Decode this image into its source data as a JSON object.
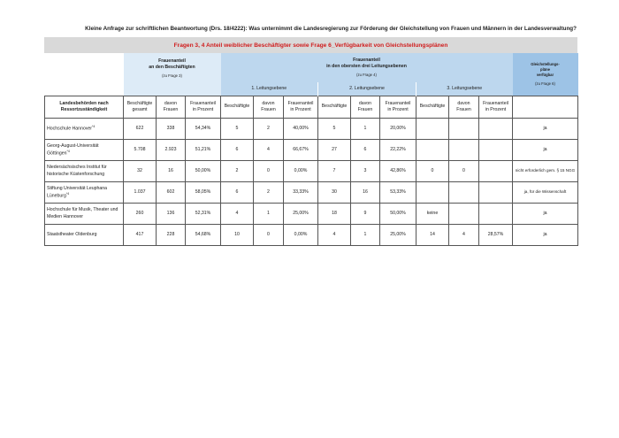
{
  "title": "Kleine Anfrage zur schriftlichen Beantwortung (Drs. 18/4222): Was unternimmt die Landesregierung zur Förderung der Gleichstellung von Frauen und Männern in der Landesverwaltung?",
  "banner": "Fragen 3, 4 Anteil weiblicher Beschäftigter sowie Frage 6_Verfügbarkeit von Gleichstellungsplänen",
  "groups": {
    "beschaeftigte": {
      "line1": "Frauenanteil",
      "line2": "an den Beschäftigten",
      "ref": "(zu Frage 3)"
    },
    "leitung": {
      "line1": "Frauenanteil",
      "line2": "in den obersten drei Leitungsebenen",
      "ref": "(zu Frage 4)",
      "levels": [
        "1. Leitungsebene",
        "2. Leitungsebene",
        "3. Leitungsebene"
      ]
    },
    "plaene": {
      "line1": "Gleichstellungs-",
      "line2": "pläne",
      "line3": "verfügbar",
      "ref": "(zu Frage 6)"
    }
  },
  "columns": {
    "name_line1": "Landesbehörden nach",
    "name_line2": "Ressortzuständigkeit",
    "gesamt": [
      "Beschäftigte",
      "gesamt"
    ],
    "frauen": [
      "davon",
      "Frauen"
    ],
    "prozent": [
      "Frauenanteil",
      "in Prozent"
    ],
    "beschaeftigte": "Beschäftigte"
  },
  "rows": [
    {
      "name": "Hochschule Hannover",
      "sup": "*4",
      "cells": [
        "622",
        "338",
        "54,34%",
        "5",
        "2",
        "40,00%",
        "5",
        "1",
        "20,00%",
        "",
        "",
        "",
        "ja"
      ]
    },
    {
      "name": "Georg-August-Universität Göttingen",
      "sup": "*4",
      "cells": [
        "5.708",
        "2.923",
        "51,21%",
        "6",
        "4",
        "66,67%",
        "27",
        "6",
        "22,22%",
        "",
        "",
        "",
        "ja"
      ]
    },
    {
      "name": "Niedersächsisches Institut für historische Küstenforschung",
      "sup": "",
      "cells": [
        "32",
        "16",
        "50,00%",
        "2",
        "0",
        "0,00%",
        "7",
        "3",
        "42,86%",
        "0",
        "0",
        "",
        "nicht erforderlich gem. § 15 NGG"
      ]
    },
    {
      "name": "Stiftung Universität Leuphana Lüneburg",
      "sup": "*4",
      "cells": [
        "1.037",
        "602",
        "58,05%",
        "6",
        "2",
        "33,33%",
        "30",
        "16",
        "53,33%",
        "",
        "",
        "",
        "ja, für die Wissenschaft"
      ]
    },
    {
      "name": "Hochschule für Musik, Theater und Medien Hannover",
      "sup": "",
      "cells": [
        "260",
        "136",
        "52,31%",
        "4",
        "1",
        "25,00%",
        "18",
        "9",
        "50,00%",
        "keine",
        "",
        "",
        "ja"
      ]
    },
    {
      "name": "Staatstheater Oldenburg",
      "sup": "",
      "cells": [
        "417",
        "228",
        "54,68%",
        "10",
        "0",
        "0,00%",
        "4",
        "1",
        "25,00%",
        "14",
        "4",
        "28,57%",
        "ja"
      ]
    }
  ]
}
